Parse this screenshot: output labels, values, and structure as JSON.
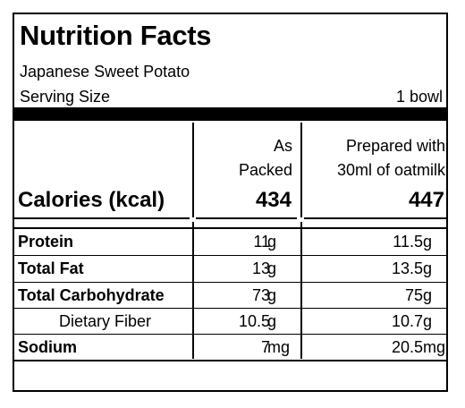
{
  "title": "Nutrition Facts",
  "product": "Japanese Sweet Potato",
  "serving": {
    "label": "Serving Size",
    "value": "1 bowl"
  },
  "columns": {
    "as_packed": [
      "As",
      "Packed"
    ],
    "prepared": [
      "Prepared with",
      "30ml of oatmilk"
    ]
  },
  "calories": {
    "label": "Calories (kcal)",
    "as_packed": "434",
    "prepared": "447"
  },
  "nutrients": [
    {
      "name": "Protein",
      "as_packed": "11",
      "prepared": "11.5",
      "unit": "g"
    },
    {
      "name": "Total Fat",
      "as_packed": "13",
      "prepared": "13.5",
      "unit": "g"
    },
    {
      "name": "Total Carbohydrate",
      "as_packed": "73",
      "prepared": "75",
      "unit": "g"
    },
    {
      "name": "Dietary Fiber",
      "as_packed": "10.5",
      "prepared": "10.7",
      "unit": "g"
    },
    {
      "name": "Sodium",
      "as_packed": "7",
      "prepared": "20.5",
      "unit": "mg"
    }
  ]
}
